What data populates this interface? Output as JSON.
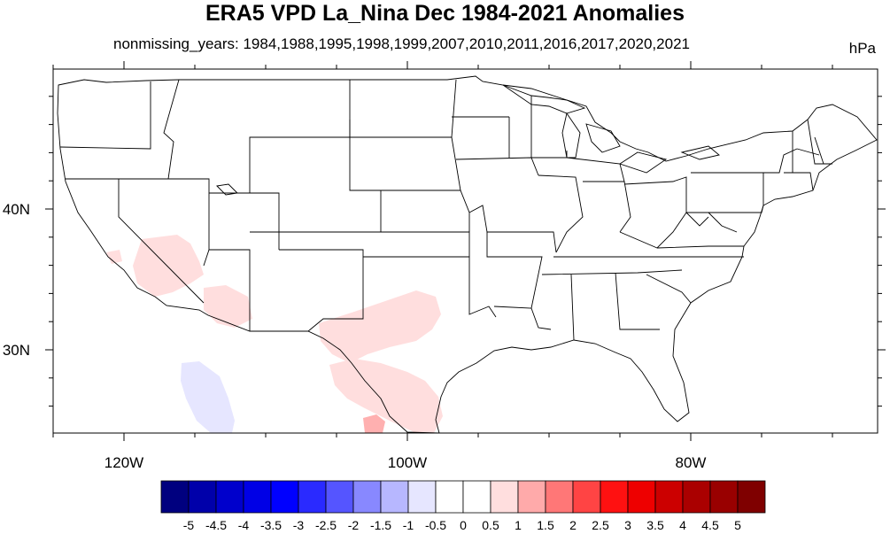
{
  "title": "ERA5 VPD La_Nina Dec 1984-2021 Anomalies",
  "subtitle": "nonmissing_years: 1984,1988,1995,1998,1999,2007,2010,2011,2016,2017,2020,2021",
  "units": "hPa",
  "axes": {
    "lon_labels": [
      {
        "lon": -120,
        "text": "120W"
      },
      {
        "lon": -100,
        "text": "100W"
      },
      {
        "lon": -80,
        "text": "80W"
      }
    ],
    "lat_labels": [
      {
        "lat": 40,
        "text": "40N"
      },
      {
        "lat": 30,
        "text": "30N"
      }
    ],
    "lon_range": [
      -125,
      -67
    ],
    "lat_range": [
      24,
      49
    ]
  },
  "colorbar": {
    "colors": [
      "#00007f",
      "#0000aa",
      "#0000cc",
      "#0000e6",
      "#0000ff",
      "#2a2aff",
      "#5555ff",
      "#8888ff",
      "#b7b7ff",
      "#e6e6ff",
      "#ffffff",
      "#ffffff",
      "#ffdede",
      "#ffaaaa",
      "#ff7777",
      "#ff4444",
      "#ff1111",
      "#ee0000",
      "#cc0000",
      "#aa0000",
      "#990000",
      "#7f0000"
    ],
    "labels": [
      "-5",
      "-4.5",
      "-4",
      "-3.5",
      "-3",
      "-2.5",
      "-2",
      "-1.5",
      "-1",
      "-0.5",
      "0",
      "0.5",
      "1",
      "1.5",
      "2",
      "2.5",
      "3",
      "3.5",
      "4",
      "4.5",
      "5"
    ]
  },
  "anomaly_regions": [
    {
      "name": "southern-california-nevada",
      "value": 0.7,
      "color": "#ffdede"
    },
    {
      "name": "arizona-desert",
      "value": 0.7,
      "color": "#ffdede"
    },
    {
      "name": "texas-new-mexico",
      "value": 0.7,
      "color": "#ffdede"
    },
    {
      "name": "south-texas-mexico",
      "value": 0.8,
      "color": "#ffdede"
    },
    {
      "name": "mexico-core",
      "value": 1.2,
      "color": "#ffb0b0"
    },
    {
      "name": "pacific-baja",
      "value": -0.7,
      "color": "#e6e6ff"
    }
  ]
}
